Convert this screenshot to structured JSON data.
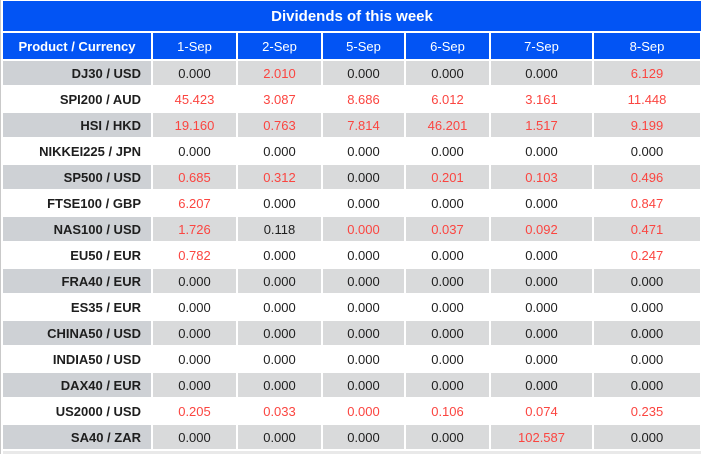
{
  "title": "Dividends of this week",
  "columns": [
    "Product / Currency",
    "1-Sep",
    "2-Sep",
    "5-Sep",
    "6-Sep",
    "7-Sep",
    "8-Sep"
  ],
  "colors": {
    "header-bg": "#0254f4",
    "header-text": "#ffffff",
    "row-gray-label": "#ced1d5",
    "row-gray-value": "#d9dadb",
    "row-white": "#ffffff",
    "value-red": "#fb4540",
    "value-black": "#1e1e1e",
    "partial-row": "#e9e9e9"
  },
  "rows": [
    {
      "product": "DJ30 / USD",
      "values": [
        {
          "v": "0.000",
          "red": false
        },
        {
          "v": "2.010",
          "red": true
        },
        {
          "v": "0.000",
          "red": false
        },
        {
          "v": "0.000",
          "red": false
        },
        {
          "v": "0.000",
          "red": false
        },
        {
          "v": "6.129",
          "red": true
        }
      ]
    },
    {
      "product": "SPI200 / AUD",
      "values": [
        {
          "v": "45.423",
          "red": true
        },
        {
          "v": "3.087",
          "red": true
        },
        {
          "v": "8.686",
          "red": true
        },
        {
          "v": "6.012",
          "red": true
        },
        {
          "v": "3.161",
          "red": true
        },
        {
          "v": "11.448",
          "red": true
        }
      ]
    },
    {
      "product": "HSI / HKD",
      "values": [
        {
          "v": "19.160",
          "red": true
        },
        {
          "v": "0.763",
          "red": true
        },
        {
          "v": "7.814",
          "red": true
        },
        {
          "v": "46.201",
          "red": true
        },
        {
          "v": "1.517",
          "red": true
        },
        {
          "v": "9.199",
          "red": true
        }
      ]
    },
    {
      "product": "NIKKEI225 / JPN",
      "values": [
        {
          "v": "0.000",
          "red": false
        },
        {
          "v": "0.000",
          "red": false
        },
        {
          "v": "0.000",
          "red": false
        },
        {
          "v": "0.000",
          "red": false
        },
        {
          "v": "0.000",
          "red": false
        },
        {
          "v": "0.000",
          "red": false
        }
      ]
    },
    {
      "product": "SP500 / USD",
      "values": [
        {
          "v": "0.685",
          "red": true
        },
        {
          "v": "0.312",
          "red": true
        },
        {
          "v": "0.000",
          "red": false
        },
        {
          "v": "0.201",
          "red": true
        },
        {
          "v": "0.103",
          "red": true
        },
        {
          "v": "0.496",
          "red": true
        }
      ]
    },
    {
      "product": "FTSE100 / GBP",
      "values": [
        {
          "v": "6.207",
          "red": true
        },
        {
          "v": "0.000",
          "red": false
        },
        {
          "v": "0.000",
          "red": false
        },
        {
          "v": "0.000",
          "red": false
        },
        {
          "v": "0.000",
          "red": false
        },
        {
          "v": "0.847",
          "red": true
        }
      ]
    },
    {
      "product": "NAS100 / USD",
      "values": [
        {
          "v": "1.726",
          "red": true
        },
        {
          "v": "0.118",
          "red": false
        },
        {
          "v": "0.000",
          "red": true
        },
        {
          "v": "0.037",
          "red": true
        },
        {
          "v": "0.092",
          "red": true
        },
        {
          "v": "0.471",
          "red": true
        }
      ]
    },
    {
      "product": "EU50 / EUR",
      "values": [
        {
          "v": "0.782",
          "red": true
        },
        {
          "v": "0.000",
          "red": false
        },
        {
          "v": "0.000",
          "red": false
        },
        {
          "v": "0.000",
          "red": false
        },
        {
          "v": "0.000",
          "red": false
        },
        {
          "v": "0.247",
          "red": true
        }
      ]
    },
    {
      "product": "FRA40 / EUR",
      "values": [
        {
          "v": "0.000",
          "red": false
        },
        {
          "v": "0.000",
          "red": false
        },
        {
          "v": "0.000",
          "red": false
        },
        {
          "v": "0.000",
          "red": false
        },
        {
          "v": "0.000",
          "red": false
        },
        {
          "v": "0.000",
          "red": false
        }
      ]
    },
    {
      "product": "ES35 / EUR",
      "values": [
        {
          "v": "0.000",
          "red": false
        },
        {
          "v": "0.000",
          "red": false
        },
        {
          "v": "0.000",
          "red": false
        },
        {
          "v": "0.000",
          "red": false
        },
        {
          "v": "0.000",
          "red": false
        },
        {
          "v": "0.000",
          "red": false
        }
      ]
    },
    {
      "product": "CHINA50 / USD",
      "values": [
        {
          "v": "0.000",
          "red": false
        },
        {
          "v": "0.000",
          "red": false
        },
        {
          "v": "0.000",
          "red": false
        },
        {
          "v": "0.000",
          "red": false
        },
        {
          "v": "0.000",
          "red": false
        },
        {
          "v": "0.000",
          "red": false
        }
      ]
    },
    {
      "product": "INDIA50 / USD",
      "values": [
        {
          "v": "0.000",
          "red": false
        },
        {
          "v": "0.000",
          "red": false
        },
        {
          "v": "0.000",
          "red": false
        },
        {
          "v": "0.000",
          "red": false
        },
        {
          "v": "0.000",
          "red": false
        },
        {
          "v": "0.000",
          "red": false
        }
      ]
    },
    {
      "product": "DAX40 / EUR",
      "values": [
        {
          "v": "0.000",
          "red": false
        },
        {
          "v": "0.000",
          "red": false
        },
        {
          "v": "0.000",
          "red": false
        },
        {
          "v": "0.000",
          "red": false
        },
        {
          "v": "0.000",
          "red": false
        },
        {
          "v": "0.000",
          "red": false
        }
      ]
    },
    {
      "product": "US2000 / USD",
      "values": [
        {
          "v": "0.205",
          "red": true
        },
        {
          "v": "0.033",
          "red": true
        },
        {
          "v": "0.000",
          "red": true
        },
        {
          "v": "0.106",
          "red": true
        },
        {
          "v": "0.074",
          "red": true
        },
        {
          "v": "0.235",
          "red": true
        }
      ]
    },
    {
      "product": "SA40 / ZAR",
      "values": [
        {
          "v": "0.000",
          "red": false
        },
        {
          "v": "0.000",
          "red": false
        },
        {
          "v": "0.000",
          "red": false
        },
        {
          "v": "0.000",
          "red": false
        },
        {
          "v": "102.587",
          "red": true
        },
        {
          "v": "0.000",
          "red": false
        }
      ]
    }
  ]
}
